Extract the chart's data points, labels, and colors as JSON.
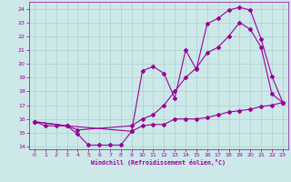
{
  "xlabel": "Windchill (Refroidissement éolien,°C)",
  "bg_color": "#cce8e8",
  "grid_color": "#aad0d0",
  "line_color": "#990099",
  "xlim": [
    -0.5,
    23.5
  ],
  "ylim": [
    13.8,
    24.5
  ],
  "xticks": [
    0,
    1,
    2,
    3,
    4,
    5,
    6,
    7,
    8,
    9,
    10,
    11,
    12,
    13,
    14,
    15,
    16,
    17,
    18,
    19,
    20,
    21,
    22,
    23
  ],
  "yticks": [
    14,
    15,
    16,
    17,
    18,
    19,
    20,
    21,
    22,
    23,
    24
  ],
  "line1_x": [
    0,
    1,
    2,
    3,
    4,
    5,
    6,
    7,
    8,
    9,
    10,
    11,
    12,
    13,
    14,
    15,
    16,
    17,
    18,
    19,
    20,
    21,
    22,
    23
  ],
  "line1_y": [
    15.8,
    15.5,
    15.5,
    15.5,
    14.9,
    14.1,
    14.1,
    14.1,
    14.1,
    15.1,
    15.5,
    15.6,
    15.6,
    16.0,
    16.0,
    16.0,
    16.1,
    16.3,
    16.5,
    16.6,
    16.7,
    16.9,
    17.0,
    17.2
  ],
  "line2_x": [
    0,
    3,
    9,
    10,
    11,
    12,
    13,
    14,
    15,
    16,
    17,
    18,
    19,
    20,
    21,
    22,
    23
  ],
  "line2_y": [
    15.8,
    15.5,
    15.1,
    19.5,
    19.8,
    19.3,
    17.5,
    21.0,
    19.6,
    22.9,
    23.3,
    23.9,
    24.1,
    23.9,
    21.8,
    19.1,
    17.2
  ],
  "line3_x": [
    0,
    3,
    4,
    9,
    10,
    11,
    12,
    13,
    14,
    15,
    16,
    17,
    18,
    19,
    20,
    21,
    22,
    23
  ],
  "line3_y": [
    15.8,
    15.5,
    15.2,
    15.5,
    16.0,
    16.3,
    17.0,
    18.0,
    19.0,
    19.7,
    20.8,
    21.2,
    22.0,
    23.0,
    22.5,
    21.2,
    17.8,
    17.2
  ]
}
